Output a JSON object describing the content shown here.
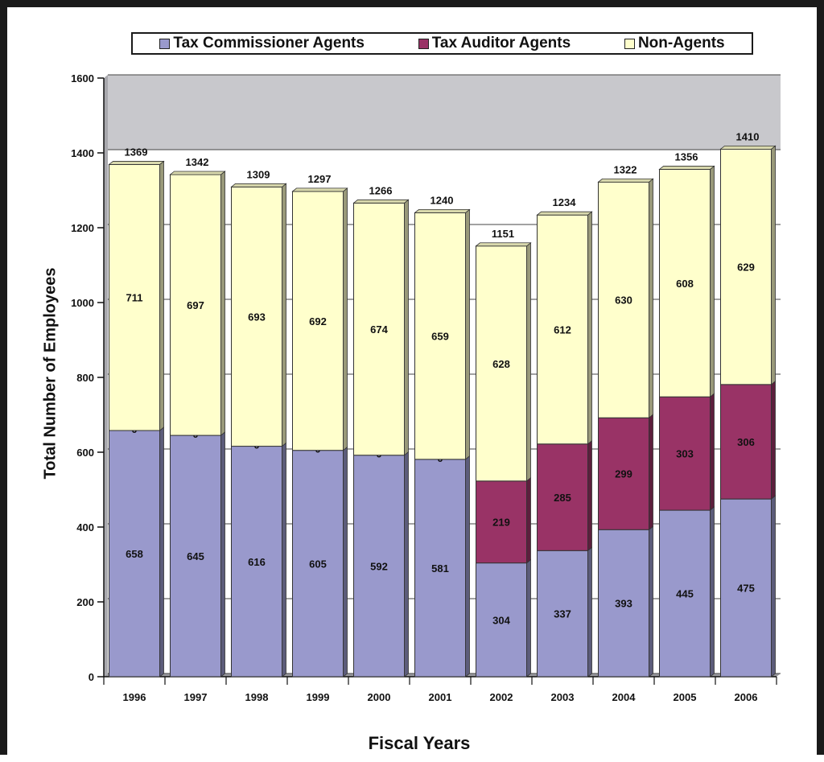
{
  "chart_data": {
    "type": "bar",
    "stacked": true,
    "three_d": true,
    "categories": [
      "1996",
      "1997",
      "1998",
      "1999",
      "2000",
      "2001",
      "2002",
      "2003",
      "2004",
      "2005",
      "2006"
    ],
    "series": [
      {
        "name": "Tax Commissioner Agents",
        "color": "#9999cc",
        "values": [
          658,
          645,
          616,
          605,
          592,
          581,
          304,
          337,
          393,
          445,
          475
        ]
      },
      {
        "name": "Tax Auditor Agents",
        "color": "#993366",
        "values": [
          0,
          0,
          0,
          0,
          0,
          0,
          219,
          285,
          299,
          303,
          306
        ]
      },
      {
        "name": "Non-Agents",
        "color": "#ffffcc",
        "values": [
          711,
          697,
          693,
          692,
          674,
          659,
          628,
          612,
          630,
          608,
          629
        ]
      }
    ],
    "totals": [
      1369,
      1342,
      1309,
      1297,
      1266,
      1240,
      1151,
      1234,
      1322,
      1356,
      1410
    ],
    "xlabel": "Fiscal Years",
    "ylabel": "Total Number of Employees",
    "ylim": [
      0,
      1600
    ],
    "yticks": [
      0,
      200,
      400,
      600,
      800,
      1000,
      1200,
      1400,
      1600
    ],
    "grid": true,
    "legend_position": "top"
  }
}
